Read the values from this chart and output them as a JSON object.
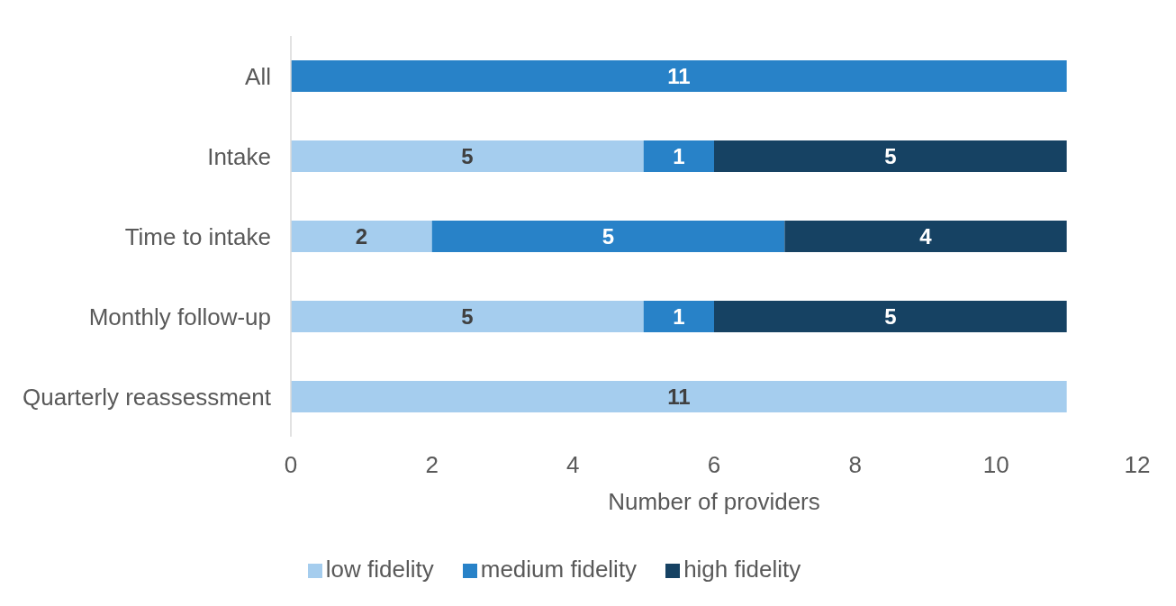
{
  "chart_data": {
    "type": "bar",
    "orientation": "horizontal",
    "stacked": true,
    "data_labels": true,
    "legend": "bottom",
    "xlabel": "Number of providers",
    "categories": [
      "All",
      "Intake",
      "Time to intake",
      "Monthly follow-up",
      "Quarterly reassessment"
    ],
    "series": [
      {
        "name": "low fidelity",
        "color": "#a5cdee",
        "values": [
          null,
          5,
          2,
          5,
          11
        ]
      },
      {
        "name": "medium fidelity",
        "color": "#2882c8",
        "values": [
          11,
          1,
          5,
          1,
          null
        ]
      },
      {
        "name": "high fidelity",
        "color": "#164263",
        "values": [
          null,
          5,
          4,
          5,
          null
        ]
      }
    ],
    "xlim": [
      0,
      12
    ],
    "xticks": [
      0,
      2,
      4,
      6,
      8,
      10,
      12
    ]
  }
}
